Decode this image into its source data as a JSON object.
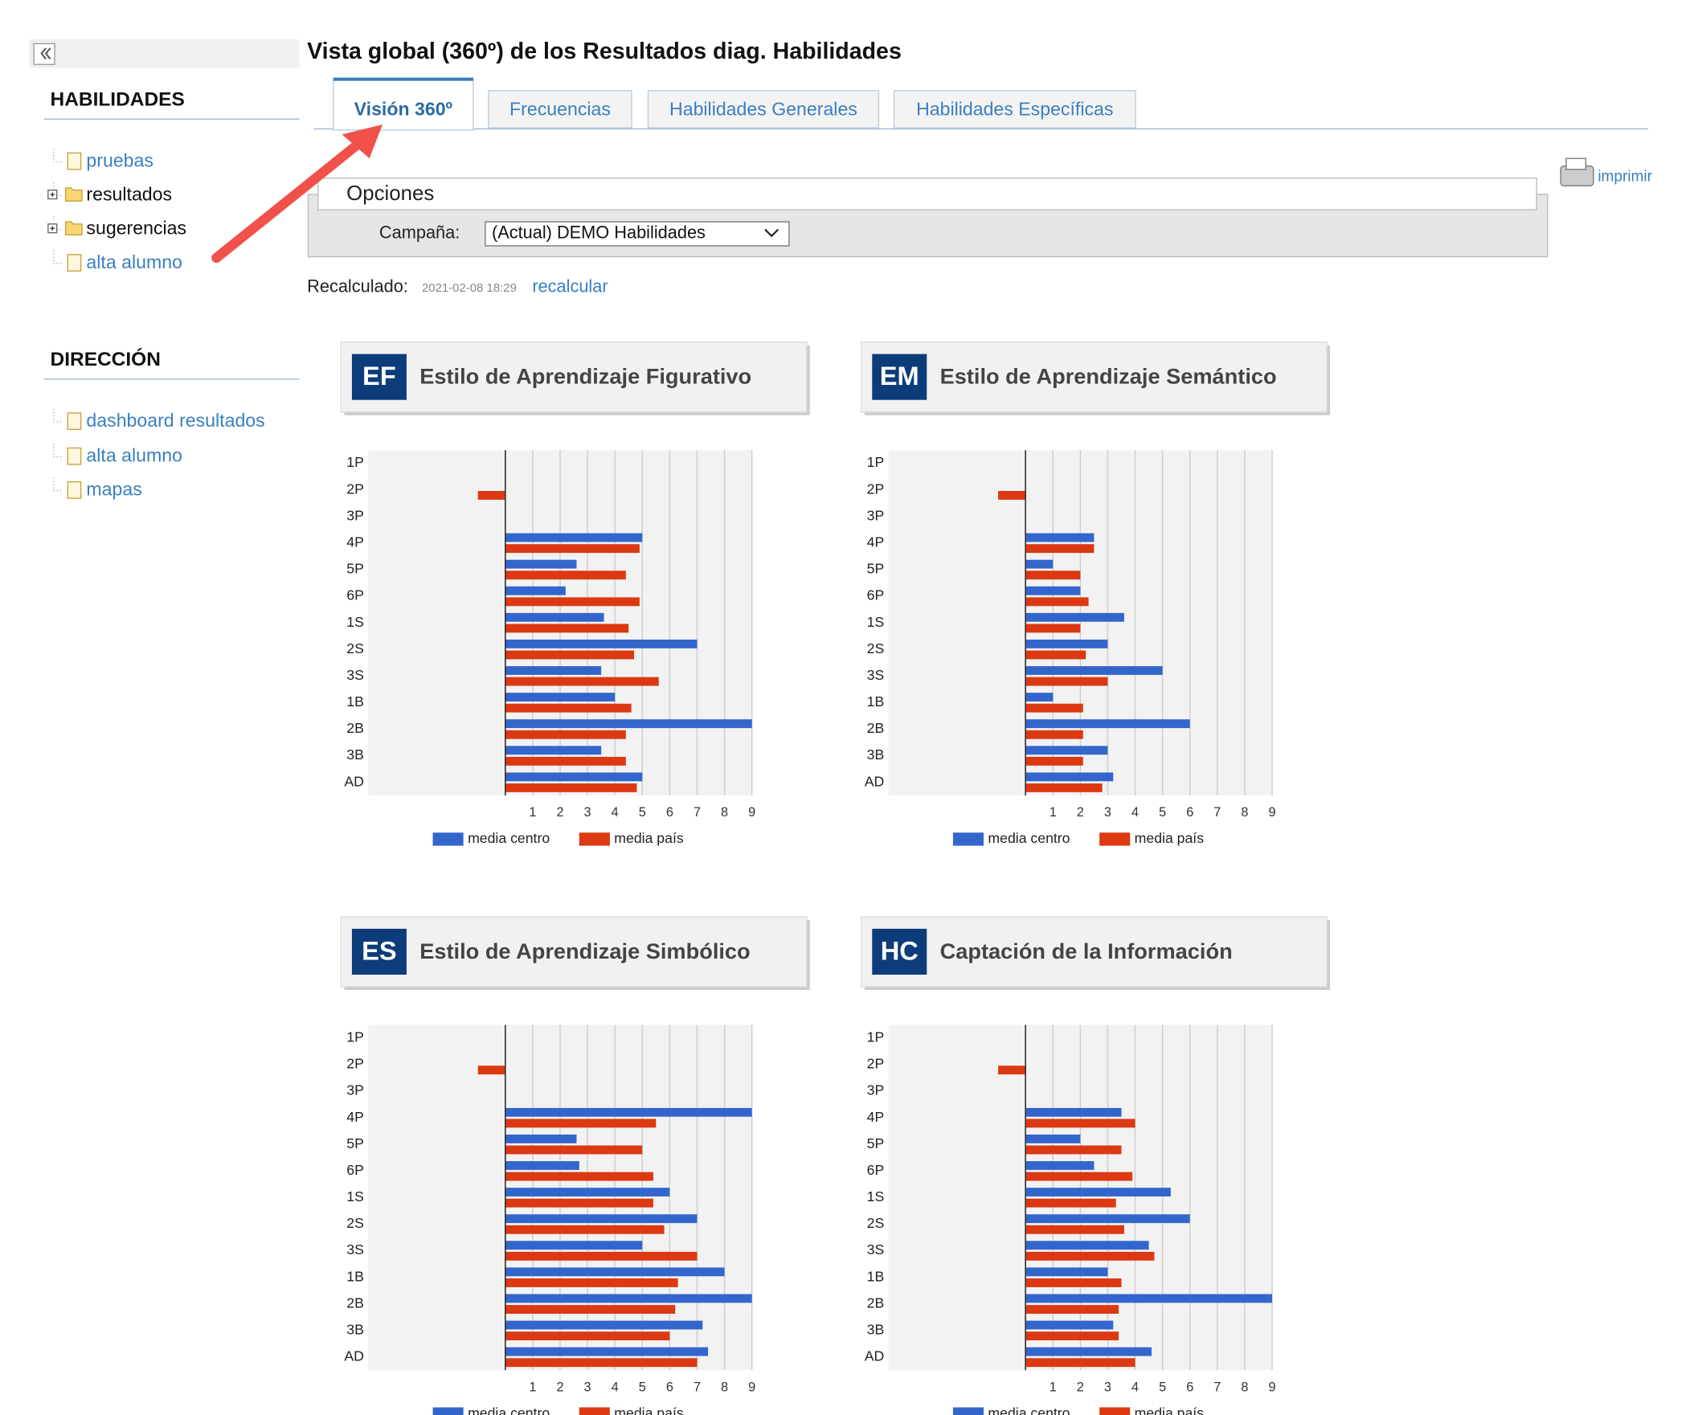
{
  "header": {
    "title": "Vista global (360º) de los Resultados diag. Habilidades"
  },
  "sidebar": {
    "sections": [
      {
        "title": "HABILIDADES",
        "items": [
          "pruebas",
          "resultados",
          "sugerencias",
          "alta alumno"
        ]
      },
      {
        "title": "DIRECCIÓN",
        "items": [
          "dashboard resultados",
          "alta alumno",
          "mapas"
        ]
      }
    ]
  },
  "tabs": [
    "Visión 360º",
    "Frecuencias",
    "Habilidades Generales",
    "Habilidades Específicas"
  ],
  "print": "imprimir",
  "options": {
    "title": "Opciones",
    "campaign_label": "Campaña:",
    "campaign_value": "(Actual) DEMO Habilidades"
  },
  "recalc": {
    "label": "Recalculado:",
    "date": "2021-02-08 18:29",
    "link": "recalcular"
  },
  "charts": [
    {
      "type": "bar",
      "code": "EF",
      "title": "Estilo de Aprendizaje Figurativo",
      "categories": [
        "1P",
        "2P",
        "3P",
        "4P",
        "5P",
        "6P",
        "1S",
        "2S",
        "3S",
        "1B",
        "2B",
        "3B",
        "AD"
      ],
      "series": [
        {
          "name": "media centro",
          "color": "#3366cc",
          "values": [
            null,
            null,
            null,
            5.0,
            2.6,
            2.2,
            3.6,
            7.0,
            3.5,
            4.0,
            9.0,
            3.5,
            5.0
          ]
        },
        {
          "name": "media país",
          "color": "#dc3912",
          "values": [
            null,
            -1,
            null,
            4.9,
            4.4,
            4.9,
            4.5,
            4.7,
            5.6,
            4.6,
            4.4,
            4.4,
            4.8
          ]
        }
      ],
      "xlim": [
        -5,
        9
      ],
      "xticks": [
        1,
        2,
        3,
        4,
        5,
        6,
        7,
        8,
        9
      ]
    },
    {
      "type": "bar",
      "code": "EM",
      "title": "Estilo de Aprendizaje Semántico",
      "categories": [
        "1P",
        "2P",
        "3P",
        "4P",
        "5P",
        "6P",
        "1S",
        "2S",
        "3S",
        "1B",
        "2B",
        "3B",
        "AD"
      ],
      "series": [
        {
          "name": "media centro",
          "color": "#3366cc",
          "values": [
            null,
            null,
            null,
            2.5,
            1.0,
            2.0,
            3.6,
            3.0,
            5.0,
            1.0,
            6.0,
            3.0,
            3.2
          ]
        },
        {
          "name": "media país",
          "color": "#dc3912",
          "values": [
            null,
            -1,
            null,
            2.5,
            2.0,
            2.3,
            2.0,
            2.2,
            3.0,
            2.1,
            2.1,
            2.1,
            2.8
          ]
        }
      ],
      "xlim": [
        -5,
        9
      ],
      "xticks": [
        1,
        2,
        3,
        4,
        5,
        6,
        7,
        8,
        9
      ]
    },
    {
      "type": "bar",
      "code": "ES",
      "title": "Estilo de Aprendizaje Simbólico",
      "categories": [
        "1P",
        "2P",
        "3P",
        "4P",
        "5P",
        "6P",
        "1S",
        "2S",
        "3S",
        "1B",
        "2B",
        "3B",
        "AD"
      ],
      "series": [
        {
          "name": "media centro",
          "color": "#3366cc",
          "values": [
            null,
            null,
            null,
            9.0,
            2.6,
            2.7,
            6.0,
            7.0,
            5.0,
            8.0,
            9.0,
            7.2,
            7.4
          ]
        },
        {
          "name": "media país",
          "color": "#dc3912",
          "values": [
            null,
            -1,
            null,
            5.5,
            5.0,
            5.4,
            5.4,
            5.8,
            7.0,
            6.3,
            6.2,
            6.0,
            7.0
          ]
        }
      ],
      "xlim": [
        -5,
        9
      ],
      "xticks": [
        1,
        2,
        3,
        4,
        5,
        6,
        7,
        8,
        9
      ]
    },
    {
      "type": "bar",
      "code": "HC",
      "title": "Captación de la Información",
      "categories": [
        "1P",
        "2P",
        "3P",
        "4P",
        "5P",
        "6P",
        "1S",
        "2S",
        "3S",
        "1B",
        "2B",
        "3B",
        "AD"
      ],
      "series": [
        {
          "name": "media centro",
          "color": "#3366cc",
          "values": [
            null,
            null,
            null,
            3.5,
            2.0,
            2.5,
            5.3,
            6.0,
            4.5,
            3.0,
            9.0,
            3.2,
            4.6
          ]
        },
        {
          "name": "media país",
          "color": "#dc3912",
          "values": [
            null,
            -1,
            null,
            4.0,
            3.5,
            3.9,
            3.3,
            3.6,
            4.7,
            3.5,
            3.4,
            3.4,
            4.0
          ]
        }
      ],
      "xlim": [
        -5,
        9
      ],
      "xticks": [
        1,
        2,
        3,
        4,
        5,
        6,
        7,
        8,
        9
      ]
    }
  ]
}
